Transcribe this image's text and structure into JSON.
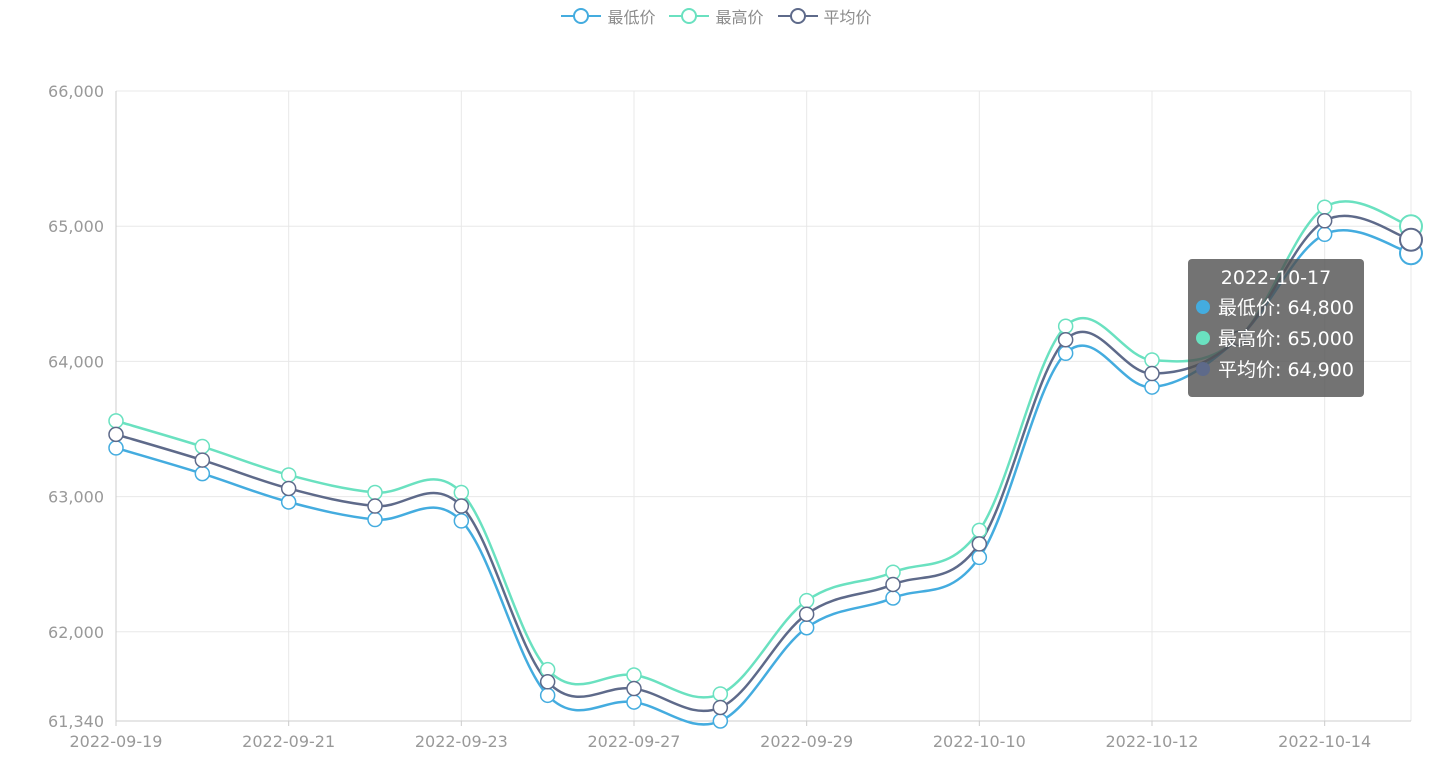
{
  "legend": {
    "items": [
      {
        "name": "最低价",
        "color": "#44acdf"
      },
      {
        "name": "最高价",
        "color": "#6ae1c0"
      },
      {
        "name": "平均价",
        "color": "#5e6a8a"
      }
    ]
  },
  "tooltip": {
    "date": "2022-10-17",
    "rows": [
      {
        "label": "最低价: 64,800",
        "color": "#44acdf"
      },
      {
        "label": "最高价: 65,000",
        "color": "#6ae1c0"
      },
      {
        "label": "平均价: 64,900",
        "color": "#5e6a8a"
      }
    ]
  },
  "chart_data": {
    "type": "line",
    "x": [
      "2022-09-19",
      "2022-09-20",
      "2022-09-21",
      "2022-09-22",
      "2022-09-23",
      "2022-09-26",
      "2022-09-27",
      "2022-09-28",
      "2022-09-29",
      "2022-09-30",
      "2022-10-10",
      "2022-10-11",
      "2022-10-12",
      "2022-10-13",
      "2022-10-14",
      "2022-10-17"
    ],
    "x_tick_labels": [
      "2022-09-19",
      "2022-09-21",
      "2022-09-23",
      "2022-09-27",
      "2022-09-29",
      "2022-10-10",
      "2022-10-12",
      "2022-10-14"
    ],
    "y_tick_labels": [
      "61,340",
      "62,000",
      "63,000",
      "64,000",
      "65,000",
      "66,000"
    ],
    "ylim": [
      61340,
      66000
    ],
    "grid": true,
    "legend_position": "top-center",
    "highlighted_index": 15,
    "series": [
      {
        "name": "最低价",
        "color": "#44acdf",
        "values": [
          63360,
          63170,
          62960,
          62830,
          62820,
          61530,
          61480,
          61340,
          62030,
          62250,
          62550,
          64060,
          63810,
          64170,
          64940,
          64800
        ]
      },
      {
        "name": "最高价",
        "color": "#6ae1c0",
        "values": [
          63560,
          63370,
          63160,
          63030,
          63030,
          61720,
          61680,
          61540,
          62230,
          62440,
          62750,
          64260,
          64010,
          64170,
          65140,
          65000
        ]
      },
      {
        "name": "平均价",
        "color": "#5e6a8a",
        "values": [
          63460,
          63270,
          63060,
          62930,
          62930,
          61630,
          61580,
          61440,
          62130,
          62350,
          62650,
          64160,
          63910,
          64170,
          65040,
          64900
        ]
      }
    ]
  }
}
